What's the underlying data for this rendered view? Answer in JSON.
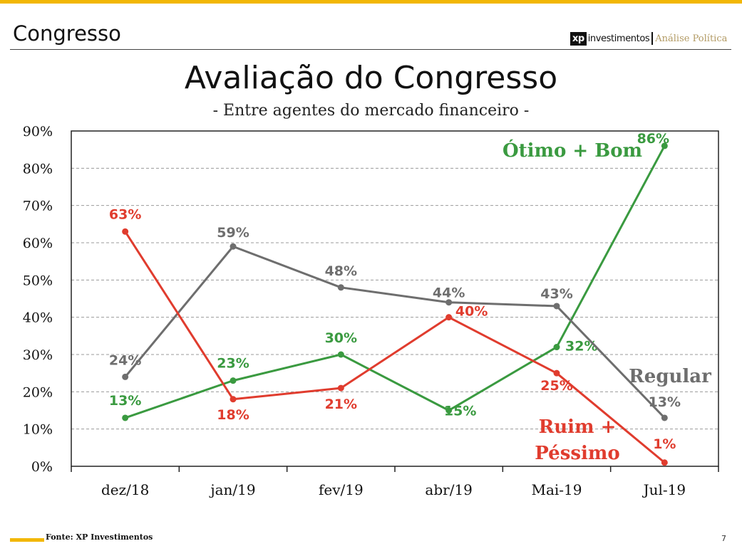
{
  "header": {
    "section_title": "Congresso",
    "logo_xp": "xp",
    "logo_company": "investimentos",
    "logo_tagline": "Análise Política"
  },
  "chart_data": {
    "type": "line",
    "title": "Avaliação do Congresso",
    "subtitle": "- Entre agentes do mercado financeiro -",
    "categories": [
      "dez/18",
      "jan/19",
      "fev/19",
      "abr/19",
      "Mai-19",
      "Jul-19"
    ],
    "ylim": [
      0,
      90
    ],
    "yticks": [
      "0%",
      "10%",
      "20%",
      "30%",
      "40%",
      "50%",
      "60%",
      "70%",
      "80%",
      "90%"
    ],
    "grid": true,
    "series": [
      {
        "name": "Ótimo + Bom",
        "color": "#3a9a40",
        "values": [
          13,
          23,
          30,
          15,
          32,
          86
        ],
        "labels": [
          "13%",
          "23%",
          "30%",
          "15%",
          "32%",
          "86%"
        ]
      },
      {
        "name": "Regular",
        "color": "#6e6e6e",
        "values": [
          24,
          59,
          48,
          44,
          43,
          13
        ],
        "labels": [
          "24%",
          "59%",
          "48%",
          "44%",
          "43%",
          "13%"
        ]
      },
      {
        "name": "Ruim + Péssimo",
        "color": "#e03c2e",
        "values": [
          63,
          18,
          21,
          40,
          25,
          1
        ],
        "labels": [
          "63%",
          "18%",
          "21%",
          "40%",
          "25%",
          "1%"
        ]
      }
    ]
  },
  "footer": {
    "source": "Fonte: XP Investimentos",
    "page_number": "7"
  }
}
